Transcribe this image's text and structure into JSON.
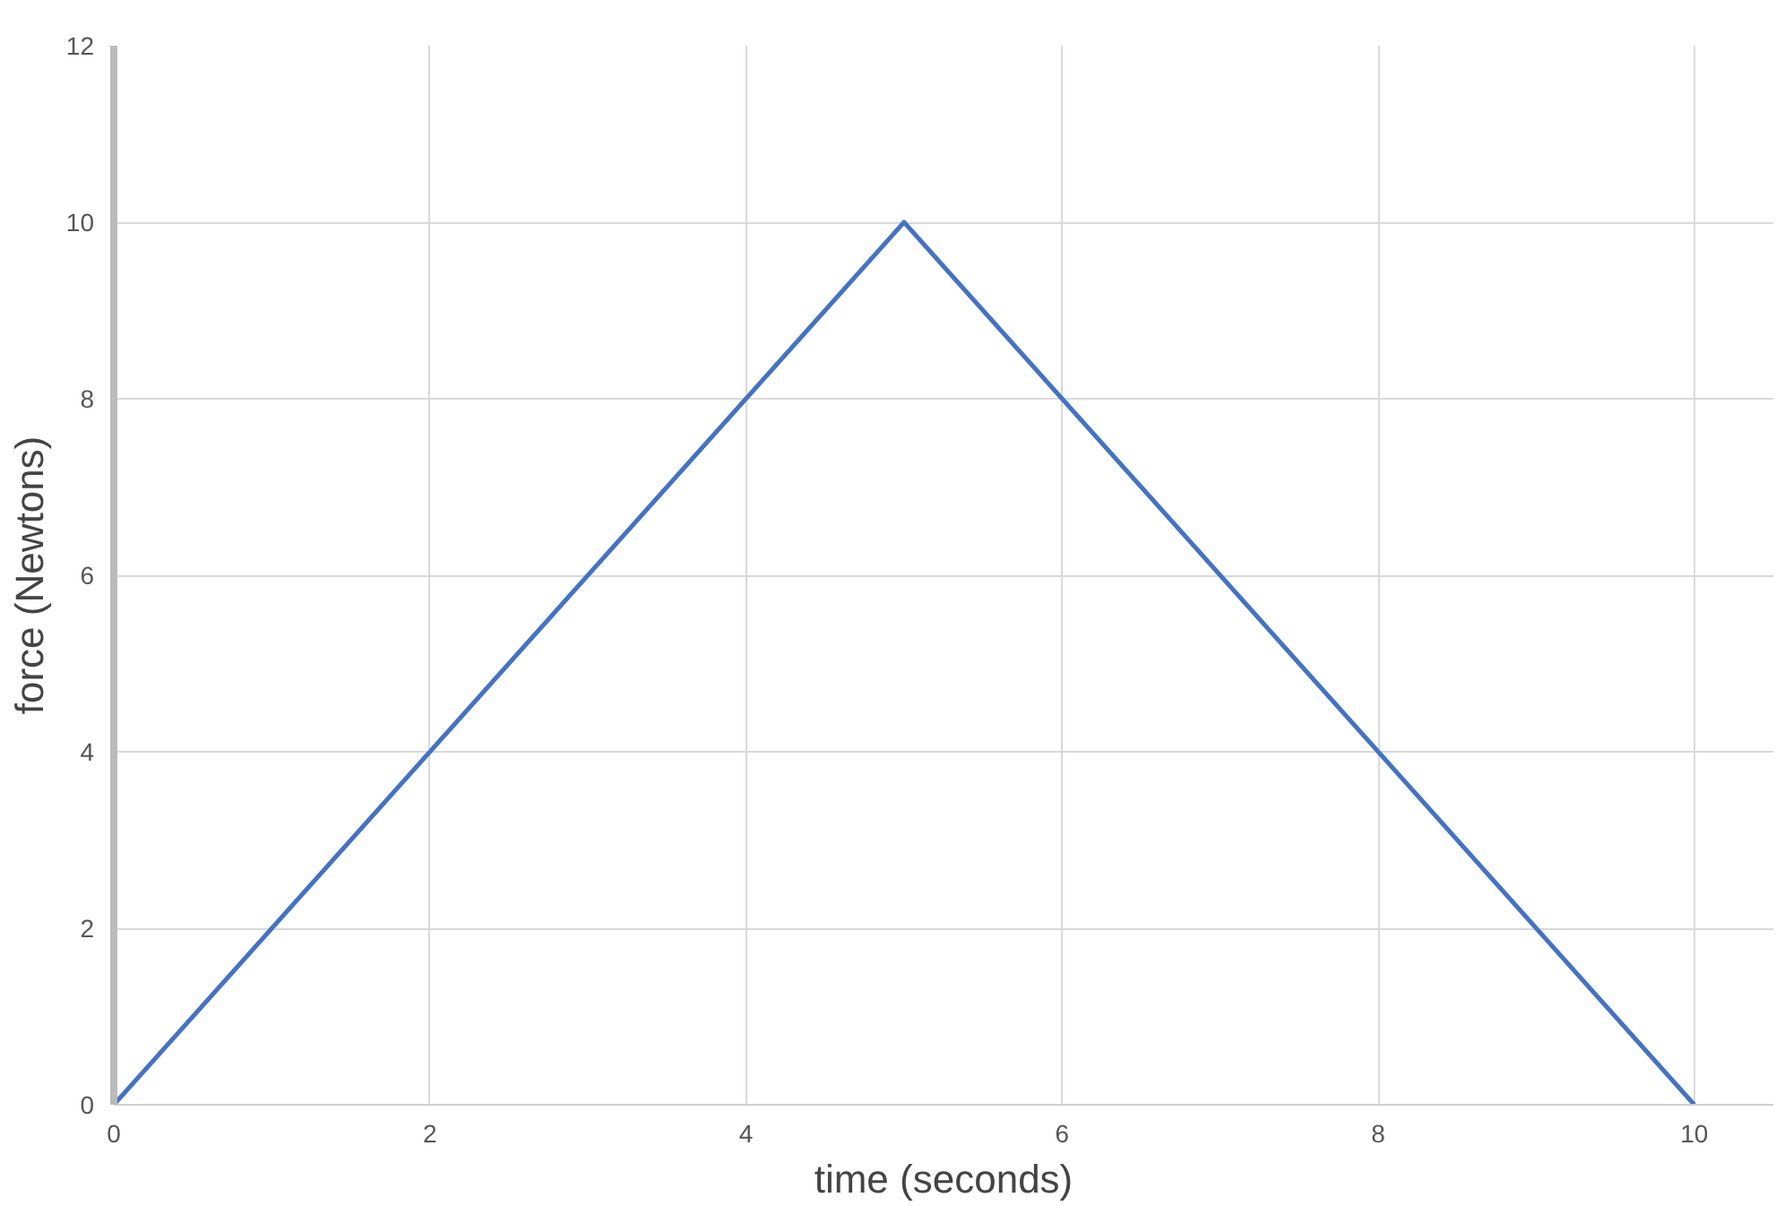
{
  "chart_data": {
    "type": "line",
    "xlabel": "time (seconds)",
    "ylabel": "force (Newtons)",
    "x": [
      0,
      5,
      10
    ],
    "series": [
      {
        "color": "#4472c4",
        "values": [
          0,
          10,
          0
        ]
      }
    ],
    "xlim": [
      0,
      10.5
    ],
    "ylim": [
      0,
      12
    ],
    "xticks": [
      0,
      2,
      4,
      6,
      8,
      10
    ],
    "yticks": [
      0,
      2,
      4,
      6,
      8,
      10,
      12
    ],
    "grid": true,
    "marker": "none",
    "line_style": "solid"
  }
}
